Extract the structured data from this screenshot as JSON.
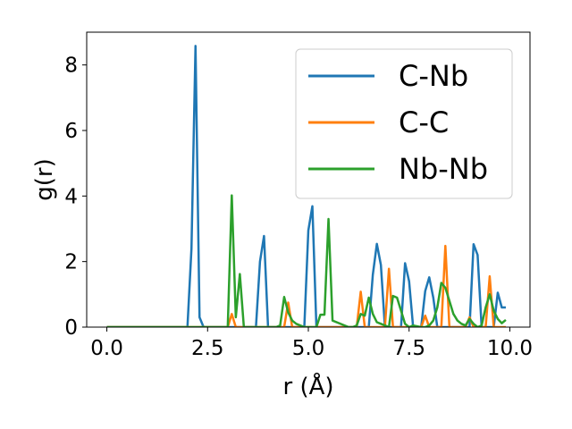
{
  "chart_data": {
    "type": "line",
    "title": "",
    "xlabel": "r (Å)",
    "ylabel": "g(r)",
    "xlim": [
      -0.5,
      10.5
    ],
    "ylim": [
      0,
      9
    ],
    "xticks": [
      0.0,
      2.5,
      5.0,
      7.5,
      10.0
    ],
    "xtick_labels": [
      "0.0",
      "2.5",
      "5.0",
      "7.5",
      "10.0"
    ],
    "yticks": [
      0,
      2,
      4,
      6,
      8
    ],
    "ytick_labels": [
      "0",
      "2",
      "4",
      "6",
      "8"
    ],
    "grid": false,
    "legend_position": "top-right",
    "series": [
      {
        "name": "C-Nb",
        "color": "#1f77b4",
        "x": [
          0.0,
          2.0,
          2.1,
          2.2,
          2.3,
          2.4,
          3.7,
          3.8,
          3.9,
          4.0,
          4.9,
          5.0,
          5.1,
          5.2,
          6.5,
          6.6,
          6.7,
          6.8,
          6.9,
          7.3,
          7.4,
          7.5,
          7.6,
          7.8,
          7.9,
          8.0,
          8.1,
          8.2,
          9.0,
          9.1,
          9.2,
          9.3,
          9.6,
          9.7,
          9.8,
          9.9
        ],
        "y": [
          0.0,
          0.0,
          2.4,
          8.58,
          0.3,
          0.0,
          0.0,
          2.0,
          2.78,
          0.0,
          0.0,
          2.95,
          3.69,
          0.0,
          0.0,
          1.6,
          2.54,
          1.9,
          0.0,
          0.0,
          1.95,
          1.4,
          0.0,
          0.0,
          1.1,
          1.52,
          0.9,
          0.0,
          0.0,
          2.53,
          2.2,
          0.0,
          0.0,
          1.05,
          0.6,
          0.6
        ]
      },
      {
        "name": "C-C",
        "color": "#ff7f0e",
        "x": [
          0.0,
          3.0,
          3.1,
          3.2,
          4.4,
          4.5,
          4.6,
          6.2,
          6.3,
          6.4,
          6.9,
          7.0,
          7.1,
          7.2,
          7.8,
          7.9,
          8.0,
          8.3,
          8.4,
          8.5,
          8.9,
          9.0,
          9.1,
          9.4,
          9.5,
          9.6,
          9.9
        ],
        "y": [
          0.0,
          0.0,
          0.4,
          0.0,
          0.0,
          0.75,
          0.0,
          0.0,
          1.08,
          0.0,
          0.0,
          1.78,
          0.0,
          0.0,
          0.0,
          0.35,
          0.0,
          0.0,
          2.48,
          0.0,
          0.0,
          0.3,
          0.0,
          0.0,
          1.55,
          0.0,
          0.0
        ]
      },
      {
        "name": "Nb-Nb",
        "color": "#2ca02c",
        "x": [
          0.0,
          3.0,
          3.1,
          3.2,
          3.3,
          3.4,
          4.2,
          4.3,
          4.4,
          4.5,
          4.6,
          4.7,
          4.8,
          4.9,
          5.0,
          5.2,
          5.3,
          5.4,
          5.5,
          5.6,
          6.0,
          6.1,
          6.2,
          6.3,
          6.4,
          6.5,
          6.6,
          6.7,
          6.8,
          6.9,
          7.0,
          7.1,
          7.2,
          7.3,
          7.4,
          7.5,
          7.6,
          7.8,
          7.9,
          8.0,
          8.1,
          8.2,
          8.3,
          8.4,
          8.5,
          8.6,
          8.7,
          8.8,
          8.9,
          9.0,
          9.1,
          9.2,
          9.3,
          9.4,
          9.5,
          9.6,
          9.7,
          9.8,
          9.9
        ],
        "y": [
          0.0,
          0.0,
          4.02,
          0.3,
          1.62,
          0.0,
          0.0,
          0.05,
          0.92,
          0.45,
          0.2,
          0.1,
          0.05,
          0.0,
          0.0,
          0.0,
          0.38,
          0.38,
          3.3,
          0.2,
          0.0,
          0.0,
          0.05,
          0.4,
          0.35,
          0.9,
          0.4,
          0.15,
          0.1,
          0.05,
          0.0,
          0.95,
          0.9,
          0.5,
          0.1,
          0.0,
          0.05,
          0.0,
          0.0,
          0.05,
          0.2,
          0.6,
          1.35,
          1.2,
          0.8,
          0.4,
          0.2,
          0.1,
          0.05,
          0.25,
          0.1,
          0.0,
          0.05,
          0.6,
          1.0,
          0.5,
          0.25,
          0.12,
          0.22
        ]
      }
    ]
  }
}
